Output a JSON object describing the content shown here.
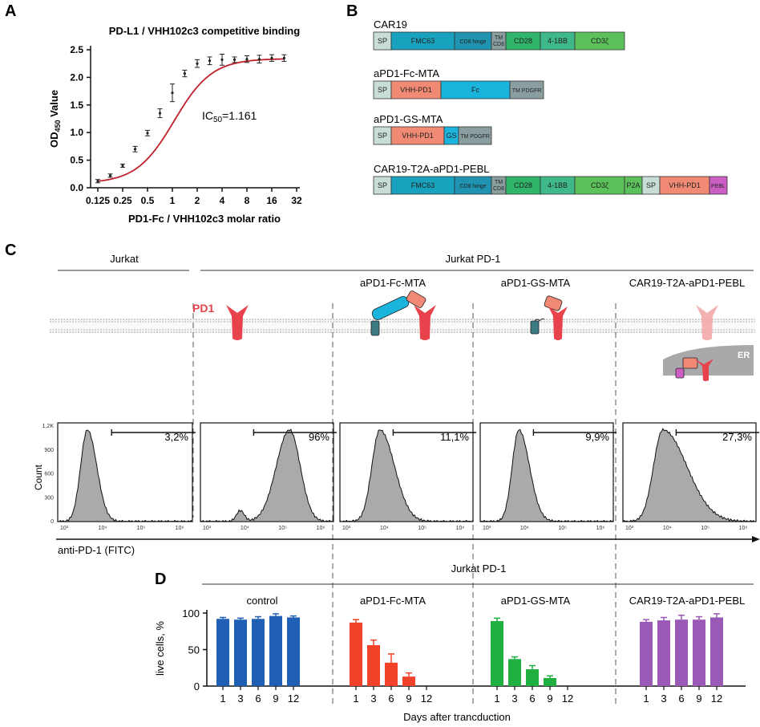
{
  "panels": {
    "A": "A",
    "B": "B",
    "C": "C",
    "D": "D"
  },
  "colors": {
    "sp": "#c7ddd6",
    "fmc63": "#18a2bd",
    "hinge": "#1f93b0",
    "tm": "#8a9e9f",
    "cd28": "#30b56a",
    "bb": "#3fb88a",
    "cd3z": "#5cc15a",
    "vhh": "#f08a74",
    "fc": "#1ab4dc",
    "gs": "#1bb4dc",
    "pebl": "#cc5fc4",
    "blue": "#1f5fb4",
    "red": "#f2432a",
    "green": "#1fb040",
    "purple": "#9b59b6",
    "pd1": "#e8434c",
    "hist": "#aaaaaa"
  },
  "panel_a": {
    "chart_data": {
      "type": "line",
      "title": "PD-L1 / VHH102c3 competitive binding",
      "xlabel": "PD1-Fc / VHH102c3 molar ratio",
      "ylabel": "OD450 Value",
      "ylabel_main": "OD",
      "ylabel_sub": "450",
      "ylabel_rest": " Value",
      "x_scale": "log2",
      "xlim": [
        0.125,
        32
      ],
      "ylim": [
        0,
        2.5
      ],
      "x_ticks": [
        "0.125",
        "0.25",
        "0.5",
        "1",
        "2",
        "4",
        "8",
        "16",
        "32"
      ],
      "y_ticks": [
        "0.0",
        "0.5",
        "1.0",
        "1.5",
        "2.0",
        "2.5"
      ],
      "x": [
        0.125,
        0.177,
        0.25,
        0.354,
        0.5,
        0.707,
        1.0,
        1.41,
        2.0,
        2.83,
        4.0,
        5.66,
        8.0,
        11.3,
        16.0,
        22.6
      ],
      "y": [
        0.12,
        0.22,
        0.4,
        0.7,
        0.99,
        1.35,
        1.72,
        2.07,
        2.25,
        2.3,
        2.32,
        2.32,
        2.33,
        2.33,
        2.35,
        2.35
      ],
      "err": [
        0.03,
        0.03,
        0.03,
        0.05,
        0.05,
        0.08,
        0.16,
        0.06,
        0.07,
        0.07,
        0.1,
        0.05,
        0.06,
        0.07,
        0.06,
        0.06
      ],
      "annotation_main": "IC",
      "annotation_sub": "50",
      "annotation_rest": "=1.161"
    }
  },
  "panel_b": {
    "constructs": [
      {
        "name": "CAR19",
        "segments": [
          {
            "label": "SP",
            "color": "#c7ddd6"
          },
          {
            "label": "FMC63",
            "color": "#18a2bd"
          },
          {
            "label": "CD8 hinge",
            "color": "#1f93b0"
          },
          {
            "label": "TM\nCD8",
            "color": "#8a9e9f"
          },
          {
            "label": "CD28",
            "color": "#30b56a"
          },
          {
            "label": "4-1BB",
            "color": "#3fb88a"
          },
          {
            "label": "CD3ζ",
            "color": "#5cc15a"
          }
        ]
      },
      {
        "name": "aPD1-Fc-MTA",
        "segments": [
          {
            "label": "SP",
            "color": "#c7ddd6"
          },
          {
            "label": "VHH-PD1",
            "color": "#f08a74"
          },
          {
            "label": "Fc",
            "color": "#1ab4dc"
          },
          {
            "label": "TM PDGFR",
            "color": "#8a9e9f"
          }
        ]
      },
      {
        "name": "aPD1-GS-MTA",
        "segments": [
          {
            "label": "SP",
            "color": "#c7ddd6"
          },
          {
            "label": "VHH-PD1",
            "color": "#f08a74"
          },
          {
            "label": "GS",
            "color": "#1bb4dc"
          },
          {
            "label": "TM PDGFR",
            "color": "#8a9e9f"
          }
        ]
      },
      {
        "name": "CAR19-T2A-aPD1-PEBL",
        "segments": [
          {
            "label": "SP",
            "color": "#c7ddd6"
          },
          {
            "label": "FMC63",
            "color": "#18a2bd"
          },
          {
            "label": "CD8 hinge",
            "color": "#1f93b0"
          },
          {
            "label": "TM\nCD8",
            "color": "#8a9e9f"
          },
          {
            "label": "CD28",
            "color": "#30b56a"
          },
          {
            "label": "4-1BB",
            "color": "#3fb88a"
          },
          {
            "label": "CD3ζ",
            "color": "#5cc15a"
          },
          {
            "label": "P2A",
            "color": "#5cc15a"
          },
          {
            "label": "SP",
            "color": "#c7ddd6"
          },
          {
            "label": "VHH-PD1",
            "color": "#f08a74"
          },
          {
            "label": "PEBL",
            "color": "#cc5fc4"
          }
        ]
      }
    ]
  },
  "panel_c": {
    "group_jurkat": "Jurkat",
    "group_jurkat_pd1": "Jurkat PD-1",
    "conditions": [
      "",
      "",
      "aPD1-Fc-MTA",
      "aPD1-GS-MTA",
      "CAR19-T2A-aPD1-PEBL"
    ],
    "pd1_label": "PD1",
    "er_label": "ER",
    "y_axis_label": "Count",
    "y_ticks": [
      "1,2K",
      "900",
      "600",
      "300",
      "0"
    ],
    "x_ticks": [
      "10³",
      "10⁴",
      "10⁵",
      "10⁶"
    ],
    "x_axis_label": "anti-PD-1 (FITC)",
    "percentages": [
      "3,2%",
      "96%",
      "11,1%",
      "9,9%",
      "27,3%"
    ]
  },
  "panel_d": {
    "header": "Jurkat PD-1",
    "ylabel": "live cells, %",
    "y_ticks": [
      "100",
      "50",
      "0"
    ],
    "xlabel": "Days after trancduction",
    "chart_data": {
      "type": "bar",
      "categories": [
        "1",
        "3",
        "6",
        "9",
        "12"
      ],
      "ylim": [
        0,
        100
      ],
      "series": [
        {
          "name": "control",
          "color": "#1f5fb4",
          "values": [
            92,
            91,
            92,
            96,
            94
          ],
          "err": [
            2,
            2,
            3,
            3,
            2
          ]
        },
        {
          "name": "aPD1-Fc-MTA",
          "color": "#f2432a",
          "values": [
            87,
            56,
            32,
            13,
            0
          ],
          "err": [
            4,
            7,
            12,
            5,
            0
          ]
        },
        {
          "name": "aPD1-GS-MTA",
          "color": "#1fb040",
          "values": [
            89,
            37,
            23,
            11,
            0
          ],
          "err": [
            4,
            3,
            5,
            3,
            0
          ]
        },
        {
          "name": "CAR19-T2A-aPD1-PEBL",
          "color": "#9b59b6",
          "values": [
            88,
            90,
            91,
            91,
            94
          ],
          "err": [
            3,
            4,
            6,
            4,
            5
          ]
        }
      ]
    }
  }
}
